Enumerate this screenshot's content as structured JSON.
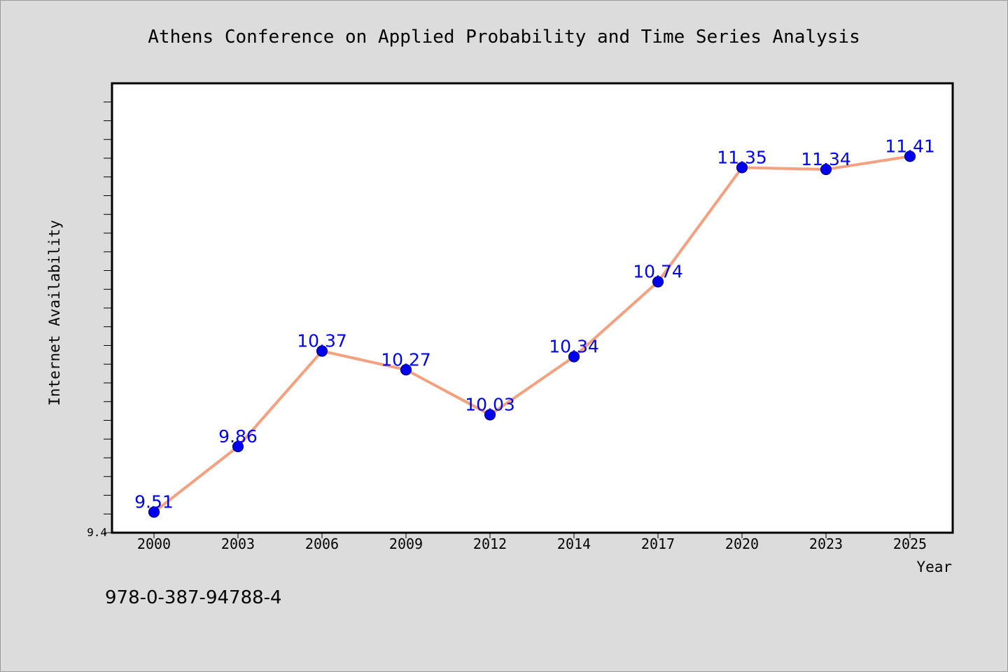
{
  "chart_data": {
    "type": "line",
    "title": "Athens Conference on Applied Probability and Time Series Analysis",
    "xlabel": "Year",
    "ylabel": "Internet Availability",
    "categories": [
      "2000",
      "2003",
      "2006",
      "2009",
      "2012",
      "2014",
      "2017",
      "2020",
      "2023",
      "2025"
    ],
    "series": [
      {
        "values": [
          9.51,
          9.86,
          10.37,
          10.27,
          10.03,
          10.34,
          10.74,
          11.35,
          11.34,
          11.41
        ],
        "labels": [
          "9.51",
          "9.86",
          "10.37",
          "10.27",
          "10.03",
          "10.34",
          "10.74",
          "11.35",
          "11.34",
          "11.41"
        ]
      }
    ],
    "ylim": [
      9.4,
      11.8
    ],
    "yticks_labeled": [
      "9.4"
    ],
    "y_minor_tick_step": 0.1,
    "grid": false,
    "legend": "none"
  },
  "annotation": "978-0-387-94788-4",
  "colors": {
    "line": "#f5a07f",
    "marker_fill": "#0000ee",
    "marker_edge": "#00007a",
    "data_label": "#0000ff",
    "plot_bg": "#ffffff",
    "page_bg": "#dcdcdc"
  }
}
